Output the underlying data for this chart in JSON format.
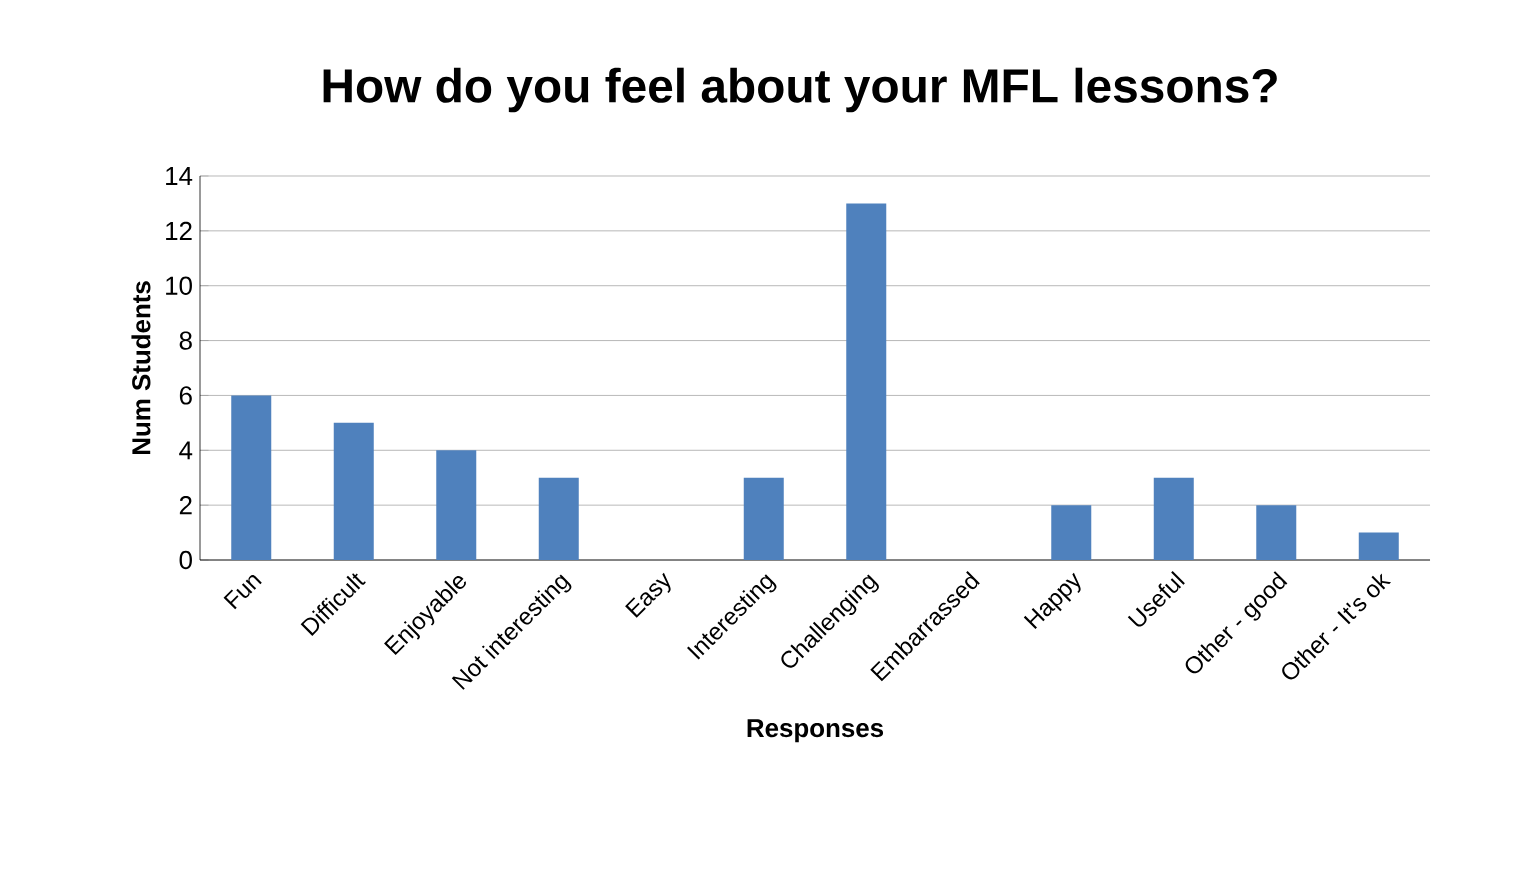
{
  "chart_data": {
    "type": "bar",
    "title": "How do you feel about your MFL lessons?",
    "xlabel": "Responses",
    "ylabel": "Num Students",
    "categories": [
      "Fun",
      "Difficult",
      "Enjoyable",
      "Not interesting",
      "Easy",
      "Interesting",
      "Challenging",
      "Embarrassed",
      "Happy",
      "Useful",
      "Other - good",
      "Other - It's ok"
    ],
    "values": [
      6,
      5,
      4,
      3,
      0,
      3,
      13,
      0,
      2,
      3,
      2,
      1
    ],
    "color": "#4f81bd",
    "ylim": [
      0,
      14
    ],
    "yticks": [
      0,
      2,
      4,
      6,
      8,
      10,
      12,
      14
    ],
    "grid": "y"
  }
}
